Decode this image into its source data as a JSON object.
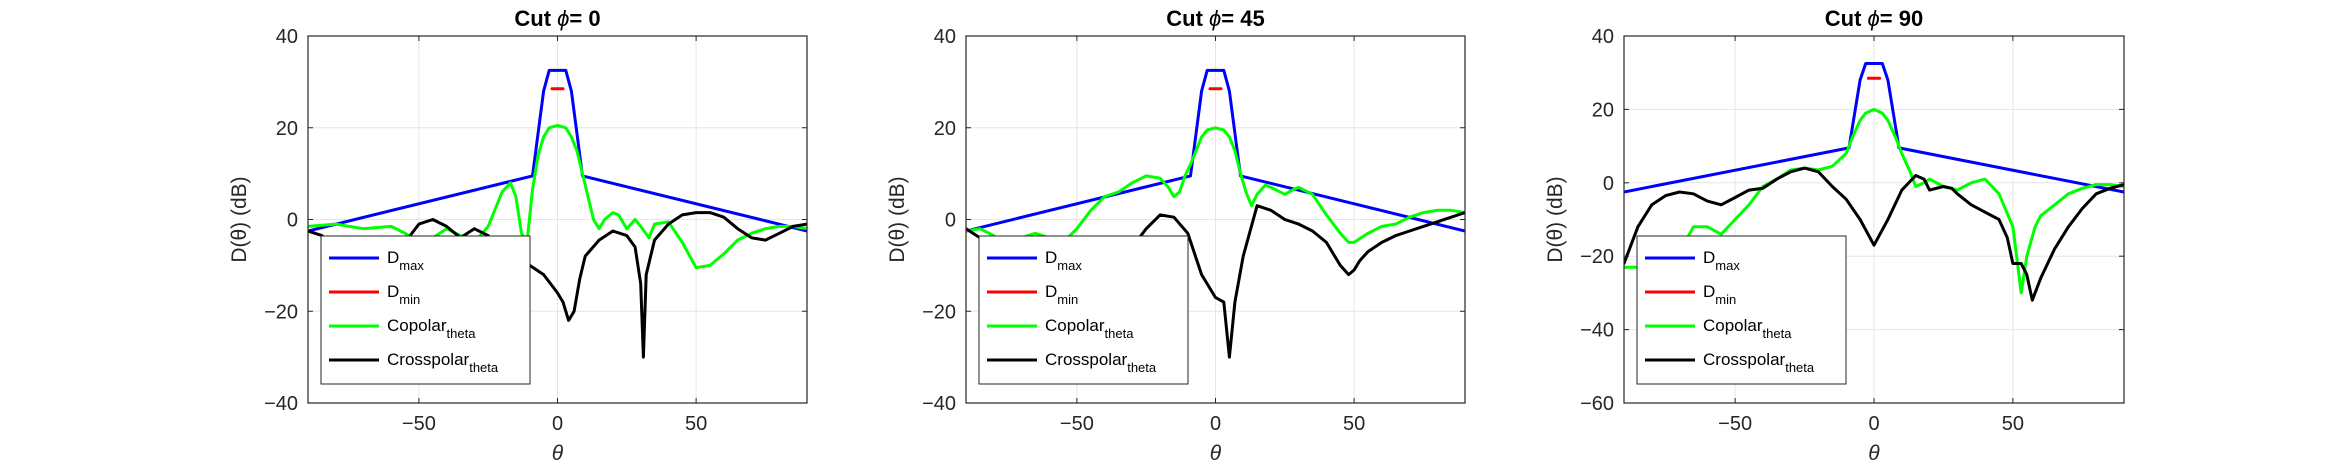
{
  "chart_data": [
    {
      "type": "line",
      "title_prefix": "Cut ",
      "title_symbol": "ϕ",
      "title_suffix": "= 0",
      "xlabel": "θ",
      "ylabel": "D(θ) (dB)",
      "xlim": [
        -90,
        90
      ],
      "ylim": [
        -40,
        40
      ],
      "xticks": [
        -50,
        0,
        50
      ],
      "yticks": [
        -40,
        -20,
        0,
        20,
        40
      ],
      "grid": true,
      "legend_position": "bottom-left",
      "series": [
        {
          "name": "D",
          "sub": "max",
          "color": "#0000ff",
          "x": [
            -90,
            -9,
            -5,
            -3,
            3,
            5,
            9,
            90
          ],
          "y": [
            -2.5,
            9.5,
            28,
            32.5,
            32.5,
            28,
            9.5,
            -2.5
          ]
        },
        {
          "name": "D",
          "sub": "min",
          "color": "#ff0000",
          "x": [
            -2,
            2
          ],
          "y": [
            28.5,
            28.5
          ]
        },
        {
          "name": "Copolar",
          "sub": "theta",
          "color": "#00ff00",
          "x": [
            -90,
            -80,
            -70,
            -60,
            -55,
            -50,
            -45,
            -40,
            -35,
            -30,
            -25,
            -20,
            -17,
            -15,
            -13,
            -11,
            -9,
            -7,
            -5,
            -3,
            0,
            3,
            5,
            7,
            9,
            11,
            13,
            15,
            17,
            20,
            22,
            25,
            28,
            30,
            33,
            35,
            40,
            45,
            50,
            55,
            60,
            65,
            70,
            75,
            80,
            85,
            90
          ],
          "y": [
            -1.5,
            -1.0,
            -2.0,
            -1.5,
            -3.0,
            -5.0,
            -4.0,
            -2.0,
            -3.5,
            -5.0,
            -1.5,
            6.0,
            8.0,
            5.0,
            -3.0,
            -5.0,
            6.5,
            14.0,
            18.0,
            20.0,
            20.5,
            20.0,
            18.0,
            15.0,
            10.0,
            5.0,
            0.0,
            -2.0,
            0.0,
            1.5,
            1.0,
            -2.0,
            0.0,
            -1.5,
            -4.0,
            -1.0,
            -0.5,
            -5.0,
            -10.5,
            -10.0,
            -7.5,
            -4.5,
            -3.0,
            -2.0,
            -1.5,
            -1.5,
            -2.0
          ]
        },
        {
          "name": "Crosspolar",
          "sub": "theta",
          "color": "#000000",
          "x": [
            -90,
            -85,
            -80,
            -75,
            -70,
            -65,
            -60,
            -55,
            -50,
            -45,
            -40,
            -35,
            -30,
            -25,
            -20,
            -15,
            -10,
            -5,
            0,
            2,
            4,
            6,
            8,
            10,
            15,
            20,
            25,
            28,
            30,
            31,
            32,
            35,
            40,
            45,
            50,
            55,
            60,
            65,
            70,
            75,
            80,
            85,
            90
          ],
          "y": [
            -2.5,
            -3.5,
            -6.0,
            -9.0,
            -12.0,
            -14.0,
            -11.0,
            -5.0,
            -1.0,
            0.0,
            -1.5,
            -4.0,
            -2.0,
            -3.5,
            -8.0,
            -12.0,
            -10.0,
            -12.0,
            -16.0,
            -18.0,
            -22.0,
            -20.0,
            -13.0,
            -8.0,
            -4.5,
            -2.5,
            -3.5,
            -6.0,
            -14.0,
            -30.0,
            -12.0,
            -4.5,
            -1.0,
            1.0,
            1.5,
            1.5,
            0.5,
            -2.0,
            -4.0,
            -4.5,
            -3.0,
            -1.5,
            -1.0
          ]
        }
      ]
    },
    {
      "type": "line",
      "title_prefix": "Cut ",
      "title_symbol": "ϕ",
      "title_suffix": "= 45",
      "xlabel": "θ",
      "ylabel": "D(θ) (dB)",
      "xlim": [
        -90,
        90
      ],
      "ylim": [
        -40,
        40
      ],
      "xticks": [
        -50,
        0,
        50
      ],
      "yticks": [
        -40,
        -20,
        0,
        20,
        40
      ],
      "grid": true,
      "legend_position": "bottom-left",
      "series": [
        {
          "name": "D",
          "sub": "max",
          "color": "#0000ff",
          "x": [
            -90,
            -9,
            -5,
            -3,
            3,
            5,
            9,
            90
          ],
          "y": [
            -2.5,
            9.5,
            28,
            32.5,
            32.5,
            28,
            9.5,
            -2.5
          ]
        },
        {
          "name": "D",
          "sub": "min",
          "color": "#ff0000",
          "x": [
            -2,
            2
          ],
          "y": [
            28.5,
            28.5
          ]
        },
        {
          "name": "Copolar",
          "sub": "theta",
          "color": "#00ff00",
          "x": [
            -90,
            -85,
            -80,
            -75,
            -70,
            -65,
            -60,
            -55,
            -50,
            -45,
            -40,
            -35,
            -30,
            -25,
            -20,
            -17,
            -15,
            -13,
            -11,
            -9,
            -7,
            -5,
            -3,
            0,
            3,
            5,
            7,
            9,
            11,
            13,
            15,
            18,
            20,
            25,
            28,
            30,
            35,
            40,
            45,
            48,
            50,
            55,
            60,
            65,
            70,
            75,
            80,
            85,
            90
          ],
          "y": [
            -2.5,
            -2.0,
            -3.5,
            -6.0,
            -4.0,
            -3.0,
            -4.0,
            -5.0,
            -2.0,
            2.0,
            5.0,
            6.0,
            8.0,
            9.5,
            9.0,
            7.0,
            5.0,
            6.0,
            9.5,
            12.0,
            15.0,
            18.0,
            19.5,
            20.0,
            19.5,
            18.0,
            15.0,
            10.0,
            6.0,
            3.0,
            5.5,
            7.5,
            7.0,
            5.5,
            6.5,
            7.0,
            5.5,
            1.0,
            -3.0,
            -5.0,
            -5.0,
            -3.0,
            -1.5,
            -1.0,
            0.5,
            1.5,
            2.0,
            2.0,
            1.5
          ]
        },
        {
          "name": "Crosspolar",
          "sub": "theta",
          "color": "#000000",
          "x": [
            -90,
            -85,
            -80,
            -75,
            -70,
            -65,
            -60,
            -55,
            -50,
            -45,
            -40,
            -35,
            -30,
            -25,
            -20,
            -15,
            -10,
            -5,
            0,
            3,
            5,
            7,
            10,
            15,
            20,
            25,
            30,
            35,
            40,
            45,
            48,
            50,
            52,
            55,
            60,
            65,
            70,
            75,
            80,
            85,
            90
          ],
          "y": [
            -2.0,
            -4.0,
            -7.0,
            -10.0,
            -12.0,
            -14.0,
            -13.0,
            -11.0,
            -9.0,
            -7.0,
            -5.0,
            -4.5,
            -6.0,
            -2.0,
            1.0,
            0.5,
            -3.0,
            -12.0,
            -17.0,
            -18.0,
            -30.0,
            -18.0,
            -8.0,
            3.0,
            2.0,
            0.0,
            -1.0,
            -2.5,
            -5.0,
            -10.0,
            -12.0,
            -11.0,
            -9.0,
            -7.0,
            -5.0,
            -3.5,
            -2.5,
            -1.5,
            -0.5,
            0.5,
            1.5
          ]
        }
      ]
    },
    {
      "type": "line",
      "title_prefix": "Cut ",
      "title_symbol": "ϕ",
      "title_suffix": "= 90",
      "xlabel": "θ",
      "ylabel": "D(θ) (dB)",
      "xlim": [
        -90,
        90
      ],
      "ylim": [
        -60,
        40
      ],
      "xticks": [
        -50,
        0,
        50
      ],
      "yticks": [
        -60,
        -40,
        -20,
        0,
        20,
        40
      ],
      "grid": true,
      "legend_position": "bottom-left",
      "series": [
        {
          "name": "D",
          "sub": "max",
          "color": "#0000ff",
          "x": [
            -90,
            -9,
            -5,
            -3,
            3,
            5,
            9,
            90
          ],
          "y": [
            -2.5,
            9.5,
            28,
            32.5,
            32.5,
            28,
            9.5,
            -2.5
          ]
        },
        {
          "name": "D",
          "sub": "min",
          "color": "#ff0000",
          "x": [
            -2,
            2
          ],
          "y": [
            28.5,
            28.5
          ]
        },
        {
          "name": "Copolar",
          "sub": "theta",
          "color": "#00ff00",
          "x": [
            -90,
            -85,
            -80,
            -75,
            -70,
            -65,
            -60,
            -55,
            -50,
            -45,
            -40,
            -35,
            -30,
            -25,
            -20,
            -15,
            -10,
            -8,
            -5,
            -3,
            0,
            3,
            5,
            8,
            10,
            13,
            15,
            18,
            20,
            25,
            30,
            35,
            40,
            45,
            50,
            53,
            55,
            58,
            60,
            65,
            70,
            75,
            80,
            85,
            90
          ],
          "y": [
            -23.0,
            -23.0,
            -22.0,
            -20.0,
            -19.0,
            -12.0,
            -12.0,
            -14.0,
            -10.0,
            -6.0,
            -1.0,
            1.0,
            3.5,
            4.0,
            3.5,
            4.5,
            8.0,
            12.0,
            17.0,
            19.0,
            20.0,
            19.0,
            17.0,
            12.0,
            8.0,
            3.0,
            -1.0,
            0.0,
            1.0,
            -1.0,
            -2.0,
            0.0,
            1.0,
            -3.0,
            -12.0,
            -30.0,
            -20.0,
            -12.0,
            -9.0,
            -6.0,
            -3.0,
            -1.5,
            -0.5,
            -0.5,
            -1.0
          ]
        },
        {
          "name": "Crosspolar",
          "sub": "theta",
          "color": "#000000",
          "x": [
            -90,
            -85,
            -80,
            -75,
            -70,
            -65,
            -60,
            -55,
            -50,
            -45,
            -40,
            -35,
            -30,
            -25,
            -20,
            -15,
            -10,
            -5,
            0,
            5,
            10,
            15,
            18,
            20,
            25,
            28,
            30,
            35,
            40,
            45,
            48,
            50,
            53,
            55,
            57,
            60,
            65,
            70,
            75,
            80,
            85,
            90
          ],
          "y": [
            -22.0,
            -12.0,
            -6.0,
            -3.5,
            -2.5,
            -3.0,
            -5.0,
            -6.0,
            -4.0,
            -2.0,
            -1.5,
            1.0,
            3.0,
            4.0,
            3.0,
            -1.0,
            -4.5,
            -10.0,
            -17.0,
            -10.0,
            -2.0,
            2.0,
            1.0,
            -2.0,
            -1.0,
            -1.5,
            -3.0,
            -6.0,
            -8.0,
            -10.0,
            -15.0,
            -22.0,
            -22.0,
            -25.0,
            -32.0,
            -26.0,
            -18.0,
            -12.0,
            -7.0,
            -3.0,
            -1.5,
            -0.5
          ]
        }
      ]
    }
  ]
}
